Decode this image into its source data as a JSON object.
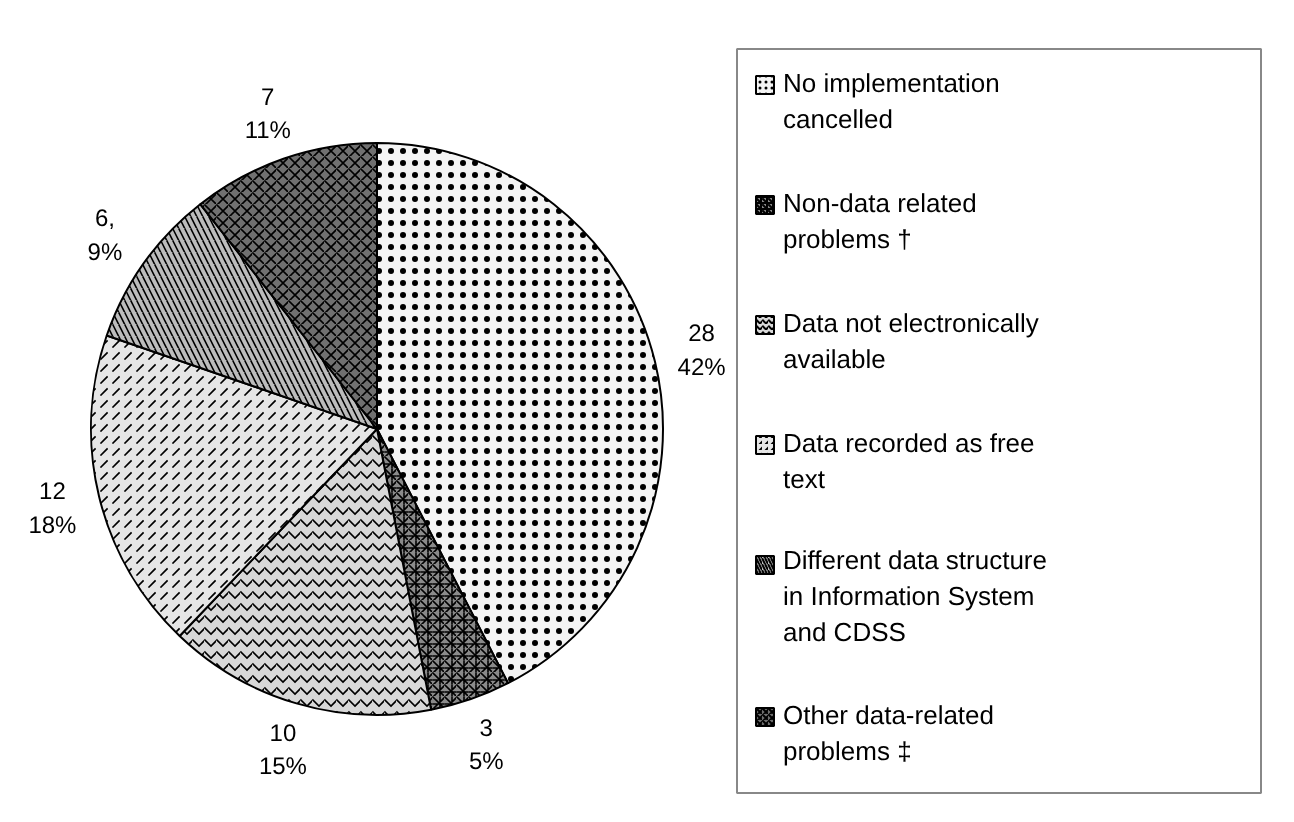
{
  "chart_data": {
    "type": "pie",
    "categories": [
      "No implementation cancelled",
      "Non-data related problems †",
      "Data not electronically available",
      "Data recorded as free text",
      "Different data structure in Information System and CDSS",
      "Other data-related problems ‡"
    ],
    "values": [
      28,
      3,
      10,
      12,
      6,
      7
    ],
    "colors": [
      "#f4f4f4",
      "#8a8a8a",
      "#d8d8d8",
      "#e6e6e6",
      "#bcbcbc",
      "#707070"
    ],
    "value_labels": [
      "28\n42%",
      "3\n5%",
      "10\n15%",
      "12\n18%",
      "6,\n9%",
      "7\n11%"
    ],
    "legend": "right"
  }
}
